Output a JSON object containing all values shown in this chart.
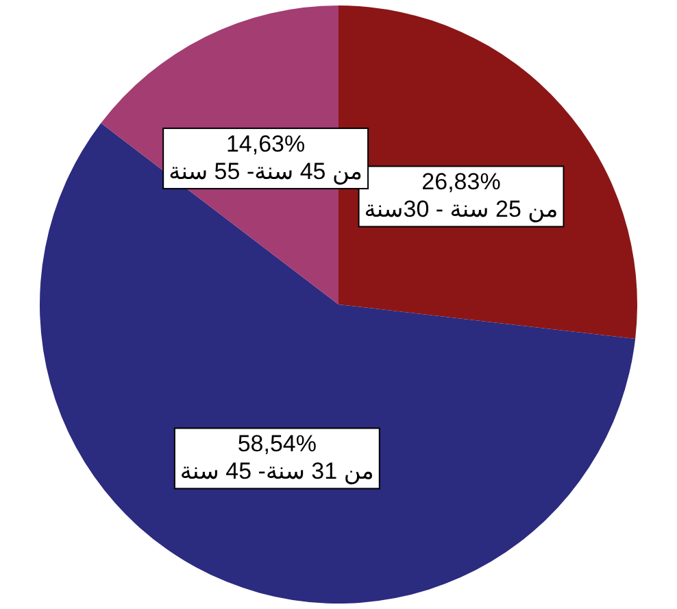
{
  "chart_data": {
    "type": "pie",
    "categories": [
      "من 25 سنة - 30سنة",
      "من 31 سنة- 45 سنة",
      "من 45 سنة- 55 سنة"
    ],
    "values": [
      26.83,
      58.54,
      14.63
    ],
    "value_labels": [
      "26,83%",
      "58,54%",
      "14,63%"
    ],
    "colors": [
      "#8c1616",
      "#2b2b80",
      "#a33d72"
    ]
  }
}
